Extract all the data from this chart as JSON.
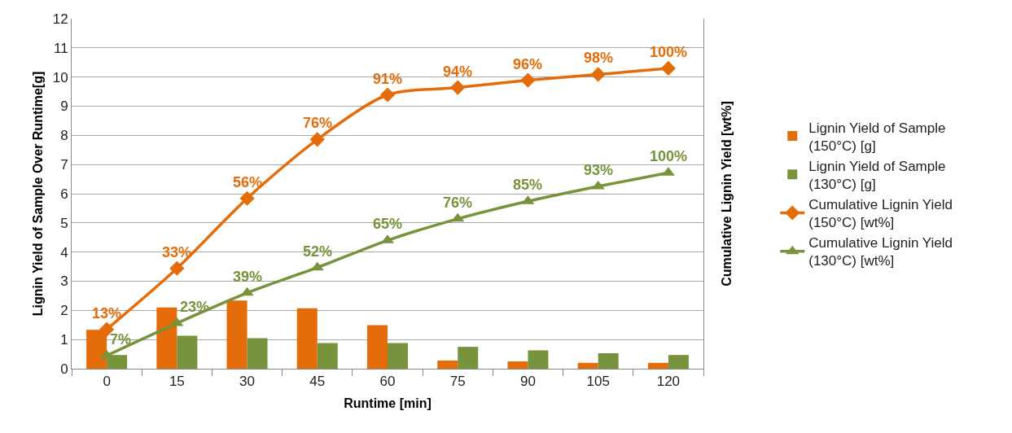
{
  "chart_data": {
    "type": "bar",
    "xlabel": "Runtime [min]",
    "ylabel": "Lignin Yield of Sample Over Runtime[g]",
    "y2label": "Cumulative Lignin Yield [wt%]",
    "categories": [
      "0",
      "15",
      "30",
      "45",
      "60",
      "75",
      "90",
      "105",
      "120"
    ],
    "ylim": [
      0,
      12
    ],
    "yticks": [
      0,
      1,
      2,
      3,
      4,
      5,
      6,
      7,
      8,
      9,
      10,
      11,
      12
    ],
    "grid": "y",
    "legend": "right",
    "series": [
      {
        "name": "Lignin Yield of Sample (150°C) [g]",
        "color": "#e46c0a",
        "values": [
          1.33,
          2.1,
          2.34,
          2.07,
          1.49,
          0.28,
          0.25,
          0.2,
          0.2
        ]
      },
      {
        "name": "Lignin Yield of Sample (130°C) [g]",
        "color": "#77933c",
        "values": [
          0.47,
          1.13,
          1.05,
          0.88,
          0.88,
          0.75,
          0.63,
          0.53,
          0.47
        ]
      },
      {
        "name": "Cumulative Lignin Yield (150°C) [wt%]",
        "type": "line",
        "color": "#e46c0a",
        "marker": "diamond",
        "values": [
          1.35,
          3.44,
          5.84,
          7.86,
          9.39,
          9.64,
          9.89,
          10.09,
          10.3
        ]
      },
      {
        "name": "Cumulative Lignin Yield (130°C) [wt%]",
        "type": "line",
        "color": "#77933c",
        "marker": "triangle",
        "values": [
          0.45,
          1.56,
          2.6,
          3.47,
          4.4,
          5.14,
          5.74,
          6.25,
          6.72
        ]
      }
    ],
    "annotations": [
      {
        "text": "13%",
        "x": "0",
        "y": 1.35
      },
      {
        "text": "33%",
        "x": "15",
        "y": 3.44
      },
      {
        "text": "56%",
        "x": "30",
        "y": 5.84
      },
      {
        "text": "76%",
        "x": "45",
        "y": 7.86
      },
      {
        "text": "91%",
        "x": "60",
        "y": 9.39
      },
      {
        "text": "94%",
        "x": "75",
        "y": 9.64
      },
      {
        "text": "96%",
        "x": "90",
        "y": 9.89
      },
      {
        "text": "98%",
        "x": "105",
        "y": 10.09
      },
      {
        "text": "100%",
        "x": "120",
        "y": 10.3
      },
      {
        "text": "7%",
        "x": "0",
        "y": 0.45
      },
      {
        "text": "23%",
        "x": "15",
        "y": 1.56
      },
      {
        "text": "39%",
        "x": "30",
        "y": 2.6
      },
      {
        "text": "52%",
        "x": "45",
        "y": 3.47
      },
      {
        "text": "65%",
        "x": "60",
        "y": 4.4
      },
      {
        "text": "76%",
        "x": "75",
        "y": 5.14
      },
      {
        "text": "85%",
        "x": "90",
        "y": 5.74
      },
      {
        "text": "93%",
        "x": "105",
        "y": 6.25
      },
      {
        "text": "100%",
        "x": "120",
        "y": 6.72
      }
    ]
  }
}
